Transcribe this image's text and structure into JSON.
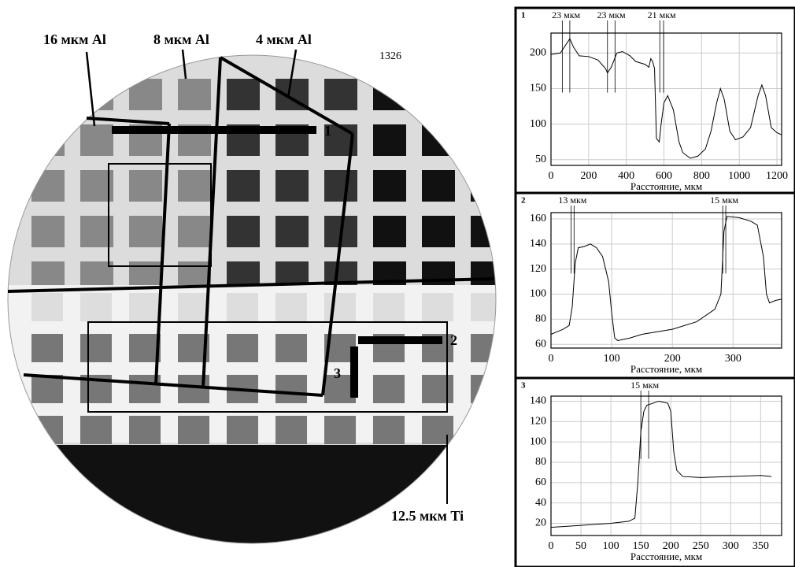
{
  "image": {
    "labels": [
      "16 мкм Al",
      "8 мкм Al",
      "4 мкм Al",
      "1326",
      "1",
      "2",
      "3",
      "12.5 мкм Ti"
    ]
  },
  "chart_data": [
    {
      "type": "line",
      "title": "1",
      "xlabel": "Расстояние, мкм",
      "x": [
        0,
        50,
        80,
        100,
        120,
        150,
        200,
        250,
        290,
        300,
        320,
        350,
        380,
        420,
        450,
        500,
        520,
        530,
        540,
        550,
        560,
        575,
        585,
        600,
        620,
        650,
        680,
        700,
        740,
        780,
        820,
        850,
        880,
        900,
        920,
        950,
        980,
        1020,
        1060,
        1100,
        1120,
        1140,
        1170,
        1200,
        1225
      ],
      "values": [
        198,
        200,
        212,
        220,
        208,
        196,
        195,
        190,
        178,
        172,
        180,
        200,
        202,
        196,
        188,
        184,
        180,
        192,
        188,
        178,
        80,
        75,
        100,
        130,
        140,
        120,
        75,
        60,
        52,
        55,
        65,
        90,
        130,
        150,
        135,
        90,
        78,
        82,
        95,
        140,
        155,
        140,
        95,
        88,
        85
      ],
      "color": "#000000",
      "xlim": [
        0,
        1225
      ],
      "ylim": [
        42,
        228
      ],
      "xticks": [
        0,
        200,
        400,
        600,
        800,
        1000,
        1200
      ],
      "yticks": [
        50,
        100,
        150,
        200
      ],
      "grid": true,
      "markers": [
        {
          "label": "23 мкм",
          "x": [
            60,
            100
          ]
        },
        {
          "label": "23 мкм",
          "x": [
            300,
            340
          ]
        },
        {
          "label": "21 мкм",
          "x": [
            578,
            598
          ]
        }
      ]
    },
    {
      "type": "line",
      "title": "2",
      "xlabel": "Расстояние, мкм",
      "x": [
        0,
        10,
        20,
        30,
        35,
        40,
        45,
        55,
        65,
        75,
        85,
        95,
        100,
        105,
        110,
        130,
        150,
        200,
        240,
        270,
        280,
        285,
        290,
        310,
        330,
        340,
        350,
        355,
        360,
        370,
        380
      ],
      "values": [
        68,
        70,
        72,
        75,
        90,
        125,
        137,
        138,
        140,
        137,
        130,
        110,
        85,
        65,
        63,
        65,
        68,
        72,
        78,
        88,
        100,
        150,
        162,
        161,
        158,
        155,
        130,
        100,
        93,
        95,
        96
      ],
      "color": "#000000",
      "xlim": [
        0,
        380
      ],
      "ylim": [
        57,
        165
      ],
      "xticks": [
        0,
        100,
        200,
        300
      ],
      "yticks": [
        60,
        80,
        100,
        120,
        140,
        160
      ],
      "grid": true,
      "markers": [
        {
          "label": "13 мкм",
          "x": [
            33,
            38
          ]
        },
        {
          "label": "15 мкм",
          "x": [
            283,
            288
          ]
        }
      ]
    },
    {
      "type": "line",
      "title": "3",
      "xlabel": "Расстояние, мкм",
      "x": [
        0,
        50,
        100,
        130,
        140,
        145,
        150,
        155,
        160,
        170,
        180,
        195,
        200,
        205,
        210,
        220,
        250,
        300,
        350,
        368
      ],
      "values": [
        16,
        18,
        20,
        22,
        25,
        60,
        110,
        130,
        136,
        138,
        140,
        138,
        130,
        90,
        72,
        66,
        65,
        66,
        67,
        66
      ],
      "color": "#000000",
      "xlim": [
        0,
        385
      ],
      "ylim": [
        8,
        145
      ],
      "xticks": [
        0,
        50,
        100,
        150,
        200,
        250,
        300,
        350
      ],
      "yticks": [
        20,
        40,
        60,
        80,
        100,
        120,
        140
      ],
      "grid": true,
      "markers": [
        {
          "label": "15 мкм",
          "x": [
            150,
            163
          ]
        }
      ]
    }
  ]
}
